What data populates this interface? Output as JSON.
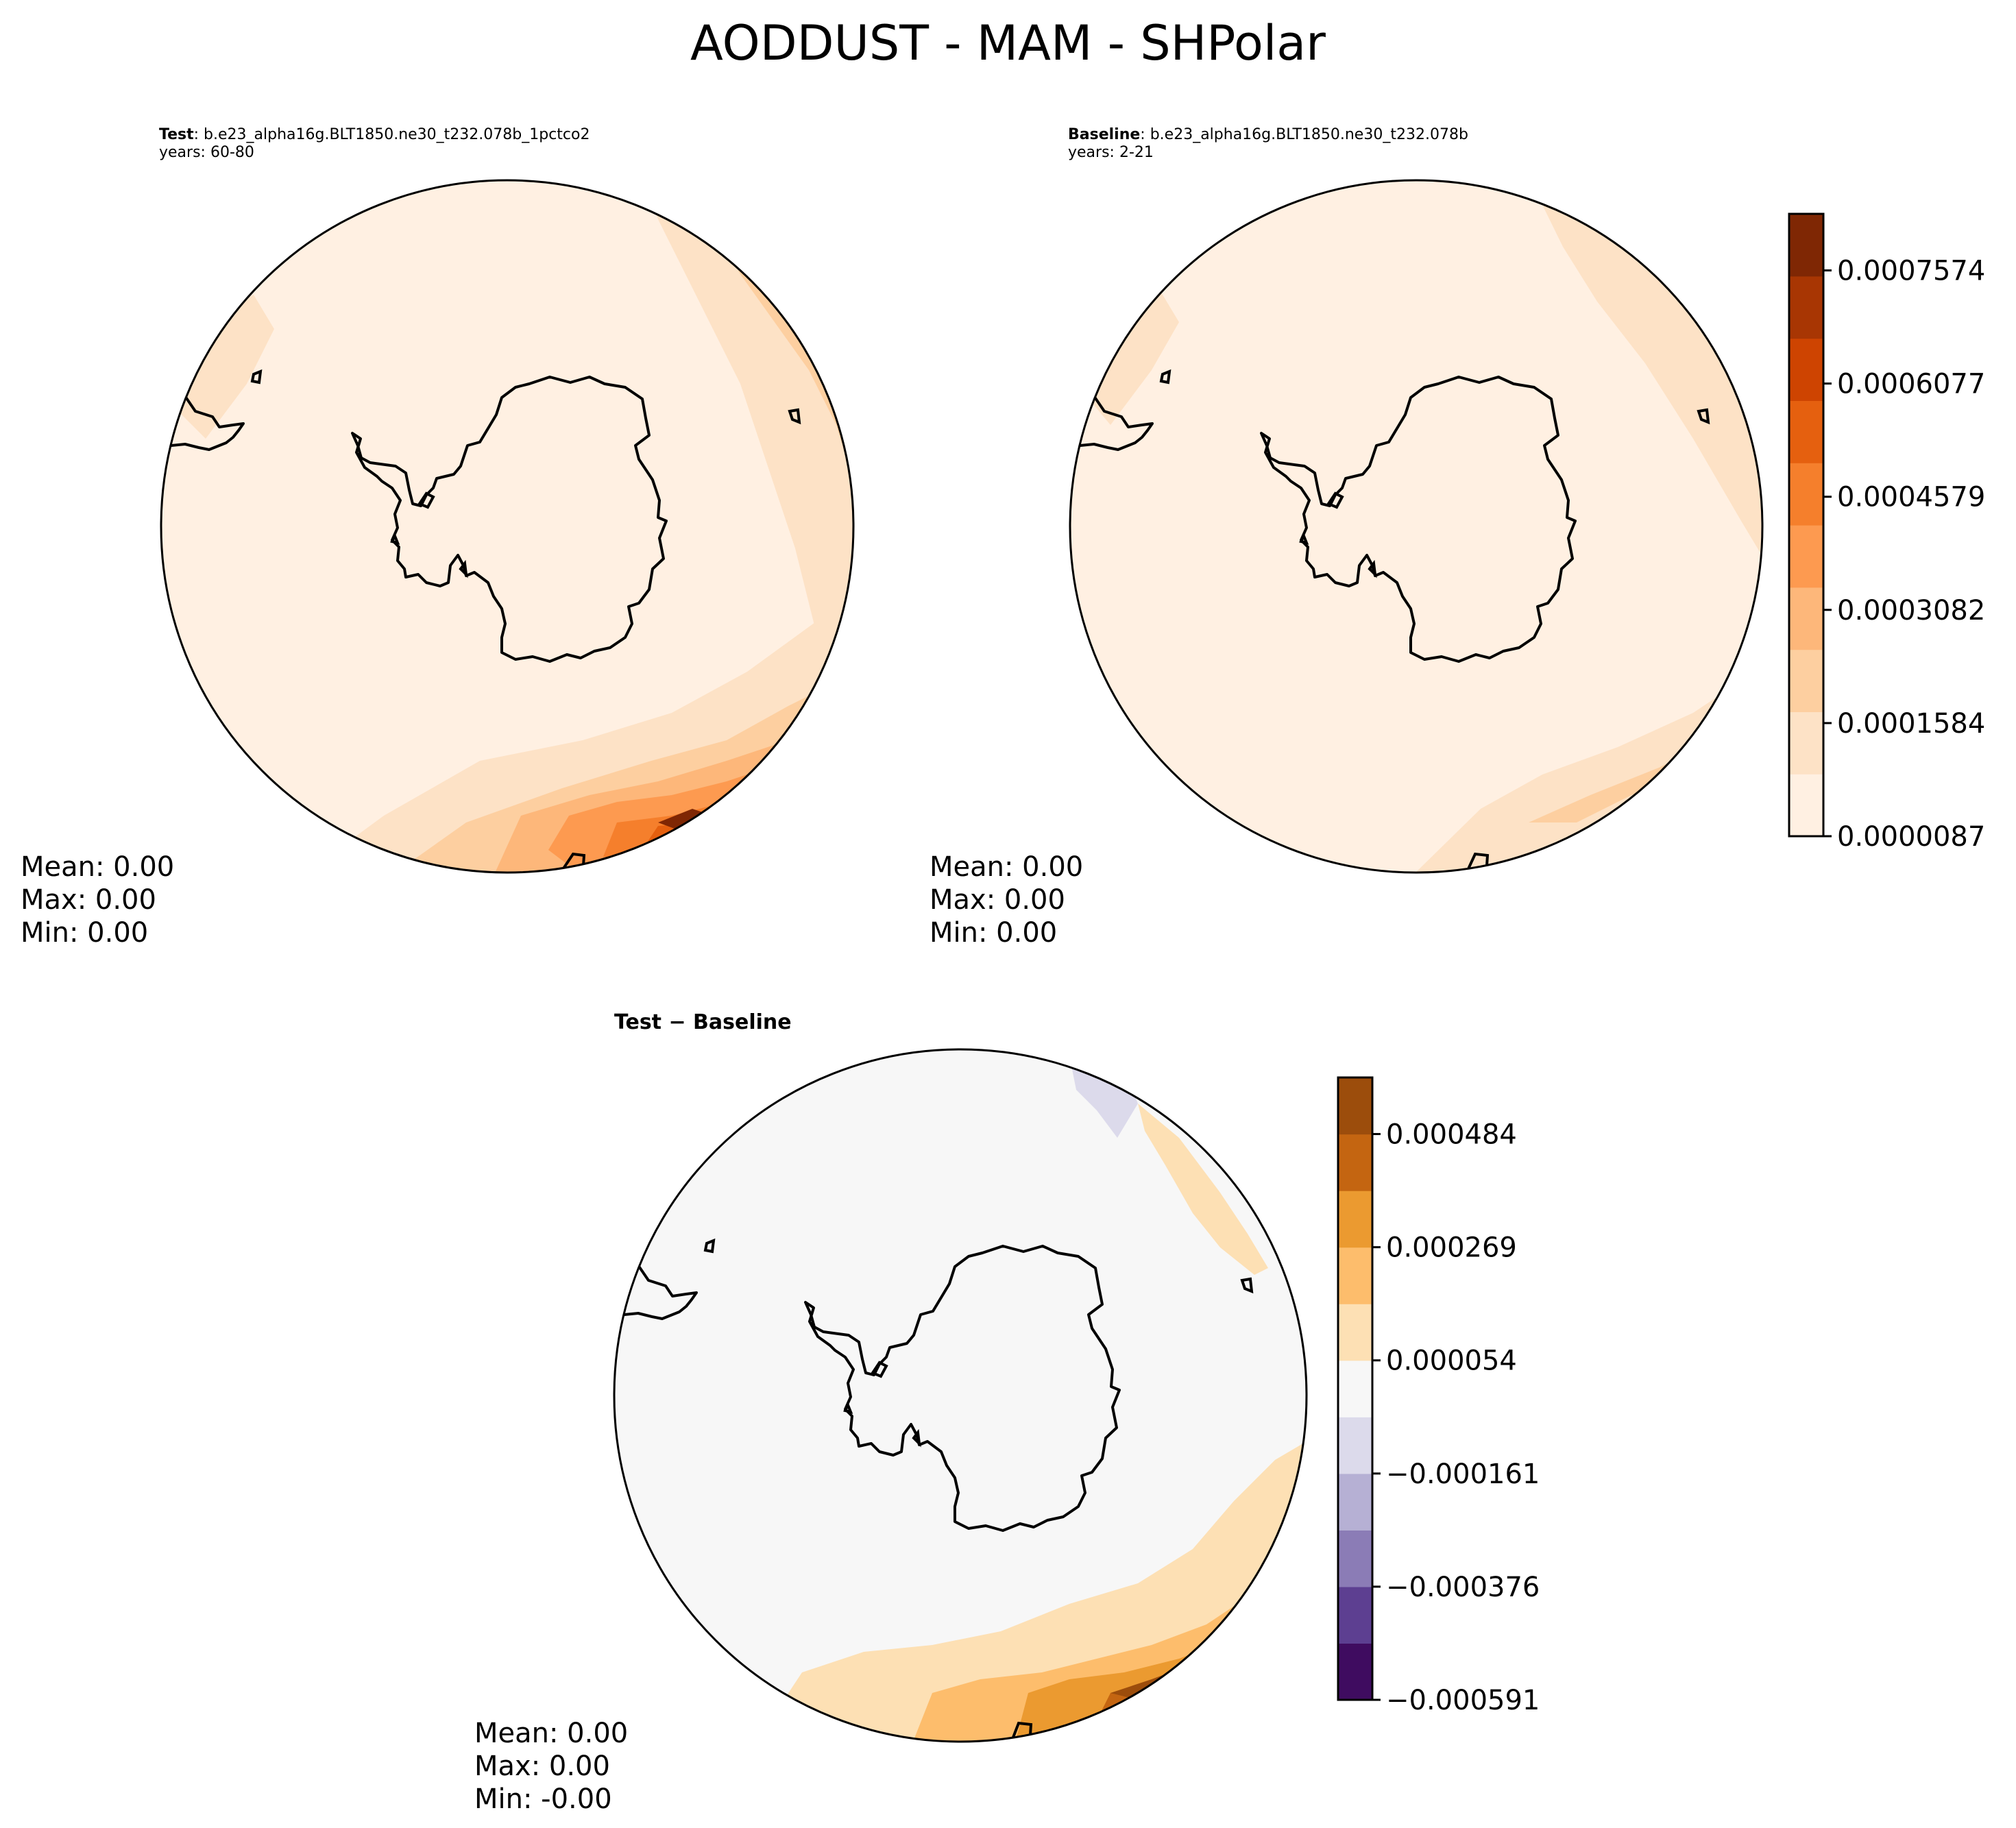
{
  "figure": {
    "title": "AODDUST - MAM - SHPolar"
  },
  "panels": {
    "test": {
      "label": "Test",
      "case": ": b.e23_alpha16g.BLT1850.ne30_t232.078b_1pctco2",
      "years": "years: 60-80",
      "mean": "Mean:  0.00",
      "max": "Max:  0.00",
      "min": "Min:  0.00"
    },
    "baseline": {
      "label": "Baseline",
      "case": ": b.e23_alpha16g.BLT1850.ne30_t232.078b",
      "years": "years: 2-21",
      "mean": "Mean:  0.00",
      "max": "Max:  0.00",
      "min": "Min:  0.00"
    },
    "diff": {
      "title": "Test − Baseline",
      "mean": "Mean:  0.00",
      "max": "Max:  0.00",
      "min": "Min: -0.00"
    }
  },
  "colors": {
    "oranges": [
      "#fff0e2",
      "#fde2c6",
      "#fdcfa0",
      "#fdb77a",
      "#fd9a50",
      "#f57f2c",
      "#e5600f",
      "#ce4401",
      "#a83603",
      "#7f2704"
    ],
    "puor": [
      "#3f0c60",
      "#5d3f91",
      "#8b7cb6",
      "#b6b0d4",
      "#dcdaeb",
      "#f7f7f7",
      "#fde0b4",
      "#fdbd6c",
      "#eb9a30",
      "#c46511",
      "#9c4d0c"
    ],
    "land_outline": "#000000"
  },
  "chart_data": [
    {
      "type": "heatmap",
      "name": "test",
      "projection": "south-polar-stereographic",
      "title": "Test : b.e23_alpha16g.BLT1850.ne30_t232.078b_1pctco2",
      "subtitle": "years: 60-80",
      "stats": {
        "mean": 0.0,
        "max": 0.0,
        "min": 0.0
      },
      "colorbar": {
        "shared_with": "baseline"
      }
    },
    {
      "type": "heatmap",
      "name": "baseline",
      "projection": "south-polar-stereographic",
      "title": "Baseline : b.e23_alpha16g.BLT1850.ne30_t232.078b",
      "subtitle": "years: 2-21",
      "stats": {
        "mean": 0.0,
        "max": 0.0,
        "min": 0.0
      },
      "colorbar": {
        "levels": 11,
        "tick_labels": [
          "0.0000087",
          "0.0001584",
          "0.0003082",
          "0.0004579",
          "0.0006077",
          "0.0007574"
        ],
        "ticks": [
          8.7e-06,
          0.0001584,
          0.0003082,
          0.0004579,
          0.0006077,
          0.0007574
        ],
        "range": [
          8.7e-06,
          0.00083225
        ]
      }
    },
    {
      "type": "heatmap",
      "name": "diff",
      "projection": "south-polar-stereographic",
      "title": "Test − Baseline",
      "stats": {
        "mean": 0.0,
        "max": 0.0,
        "min": -0.0
      },
      "colorbar": {
        "tick_labels": [
          "−0.000591",
          "−0.000376",
          "−0.000161",
          "0.000054",
          "0.000269",
          "0.000484"
        ],
        "ticks": [
          -0.000591,
          -0.000376,
          -0.000161,
          5.4e-05,
          0.000269,
          0.000484
        ],
        "range": [
          -0.000591,
          0.0005915
        ]
      }
    }
  ]
}
